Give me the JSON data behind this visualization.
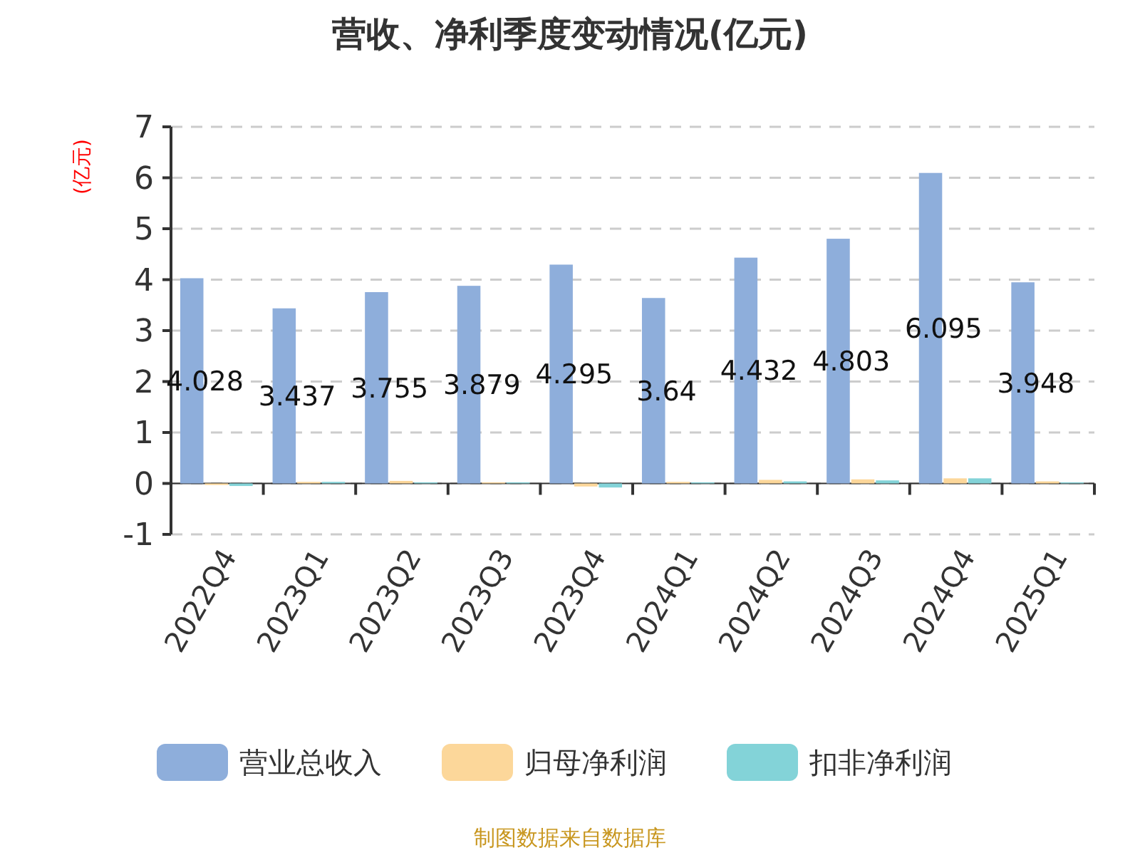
{
  "chart_data": {
    "type": "bar",
    "title": "营收、净利季度变动情况(亿元)",
    "ylabel": "(亿元)",
    "categories": [
      "2022Q4",
      "2023Q1",
      "2023Q2",
      "2023Q3",
      "2023Q4",
      "2024Q1",
      "2024Q2",
      "2024Q3",
      "2024Q4",
      "2025Q1"
    ],
    "series": [
      {
        "name": "营业总收入",
        "color": "#8eaedb",
        "values": [
          4.028,
          3.437,
          3.755,
          3.879,
          4.295,
          3.64,
          4.432,
          4.803,
          6.095,
          3.948
        ],
        "value_labels": [
          "4.028",
          "3.437",
          "3.755",
          "3.879",
          "4.295",
          "3.64",
          "4.432",
          "4.803",
          "6.095",
          "3.948"
        ]
      },
      {
        "name": "归母净利润",
        "color": "#fcd79a",
        "values": [
          -0.03,
          0.03,
          0.05,
          0.02,
          -0.06,
          0.03,
          0.07,
          0.08,
          0.1,
          0.04
        ]
      },
      {
        "name": "扣非净利润",
        "color": "#83d3d8",
        "values": [
          -0.05,
          0.03,
          0.02,
          0.02,
          -0.08,
          0.02,
          0.04,
          0.06,
          0.1,
          0.02
        ]
      }
    ],
    "ylim": [
      -1,
      7
    ],
    "yticks": [
      -1,
      0,
      1,
      2,
      3,
      4,
      5,
      6,
      7
    ],
    "grid": "y",
    "legend": "bottom",
    "annotations": [
      "制图数据来自数据库"
    ]
  }
}
